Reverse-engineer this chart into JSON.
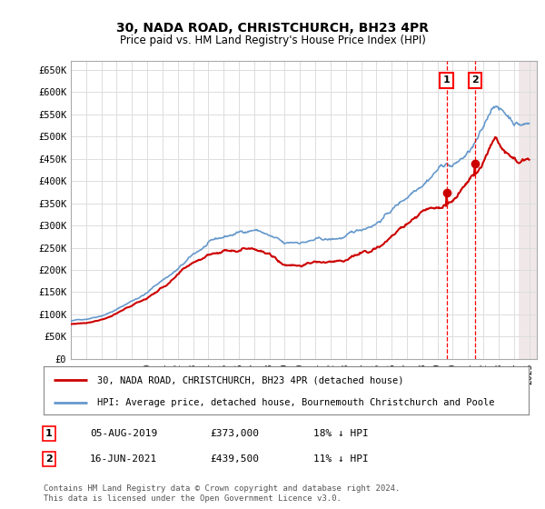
{
  "title1": "30, NADA ROAD, CHRISTCHURCH, BH23 4PR",
  "title2": "Price paid vs. HM Land Registry's House Price Index (HPI)",
  "ylabel_ticks": [
    "£0",
    "£50K",
    "£100K",
    "£150K",
    "£200K",
    "£250K",
    "£300K",
    "£350K",
    "£400K",
    "£450K",
    "£500K",
    "£550K",
    "£600K",
    "£650K"
  ],
  "ytick_values": [
    0,
    50000,
    100000,
    150000,
    200000,
    250000,
    300000,
    350000,
    400000,
    450000,
    500000,
    550000,
    600000,
    650000
  ],
  "ylim": [
    0,
    670000
  ],
  "xlim_start": 1995.0,
  "xlim_end": 2025.5,
  "marker1_x": 2019.587,
  "marker1_y": 373000,
  "marker2_x": 2021.457,
  "marker2_y": 439500,
  "legend_line1": "30, NADA ROAD, CHRISTCHURCH, BH23 4PR (detached house)",
  "legend_line2": "HPI: Average price, detached house, Bournemouth Christchurch and Poole",
  "footer": "Contains HM Land Registry data © Crown copyright and database right 2024.\nThis data is licensed under the Open Government Licence v3.0.",
  "hpi_color": "#6699cc",
  "price_color": "#cc0000",
  "grid_color": "#dddddd",
  "bg_color": "#ffffff",
  "hpi_keypoints_x": [
    1995.0,
    1996.0,
    1997.0,
    1998.0,
    1999.0,
    2000.0,
    2001.0,
    2002.0,
    2003.0,
    2004.0,
    2005.0,
    2006.0,
    2007.0,
    2007.5,
    2008.5,
    2009.0,
    2010.0,
    2011.0,
    2012.0,
    2013.0,
    2014.0,
    2015.0,
    2016.0,
    2017.0,
    2018.0,
    2019.0,
    2019.587,
    2020.0,
    2021.0,
    2021.457,
    2022.0,
    2022.5,
    2022.8,
    2023.0,
    2023.5,
    2024.0,
    2024.5,
    2025.0
  ],
  "hpi_keypoints_y": [
    85000,
    90000,
    100000,
    115000,
    135000,
    155000,
    185000,
    210000,
    240000,
    265000,
    275000,
    285000,
    295000,
    290000,
    270000,
    255000,
    260000,
    265000,
    262000,
    268000,
    280000,
    300000,
    330000,
    360000,
    400000,
    440000,
    455000,
    448000,
    475000,
    494000,
    520000,
    565000,
    585000,
    572000,
    558000,
    545000,
    540000,
    542000
  ],
  "price_keypoints_x": [
    1995.0,
    1996.0,
    1997.0,
    1998.0,
    1999.0,
    2000.0,
    2001.0,
    2002.0,
    2003.0,
    2004.0,
    2005.0,
    2006.0,
    2007.0,
    2007.5,
    2008.5,
    2009.0,
    2010.0,
    2011.0,
    2012.0,
    2013.0,
    2014.0,
    2015.0,
    2016.0,
    2017.0,
    2018.0,
    2019.0,
    2019.587,
    2020.0,
    2021.0,
    2021.457,
    2022.0,
    2022.5,
    2022.8,
    2023.0,
    2023.5,
    2024.0,
    2024.5,
    2025.0
  ],
  "price_keypoints_y": [
    78000,
    82000,
    92000,
    105000,
    122000,
    140000,
    165000,
    190000,
    215000,
    238000,
    248000,
    258000,
    268000,
    262000,
    240000,
    228000,
    232000,
    237000,
    234000,
    240000,
    252000,
    268000,
    295000,
    320000,
    355000,
    368000,
    373000,
    385000,
    420000,
    439500,
    460000,
    505000,
    525000,
    505000,
    492000,
    478000,
    472000,
    468000
  ],
  "table_data": [
    [
      "1",
      "05-AUG-2019",
      "£373,000",
      "18% ↓ HPI"
    ],
    [
      "2",
      "16-JUN-2021",
      "£439,500",
      "11% ↓ HPI"
    ]
  ]
}
